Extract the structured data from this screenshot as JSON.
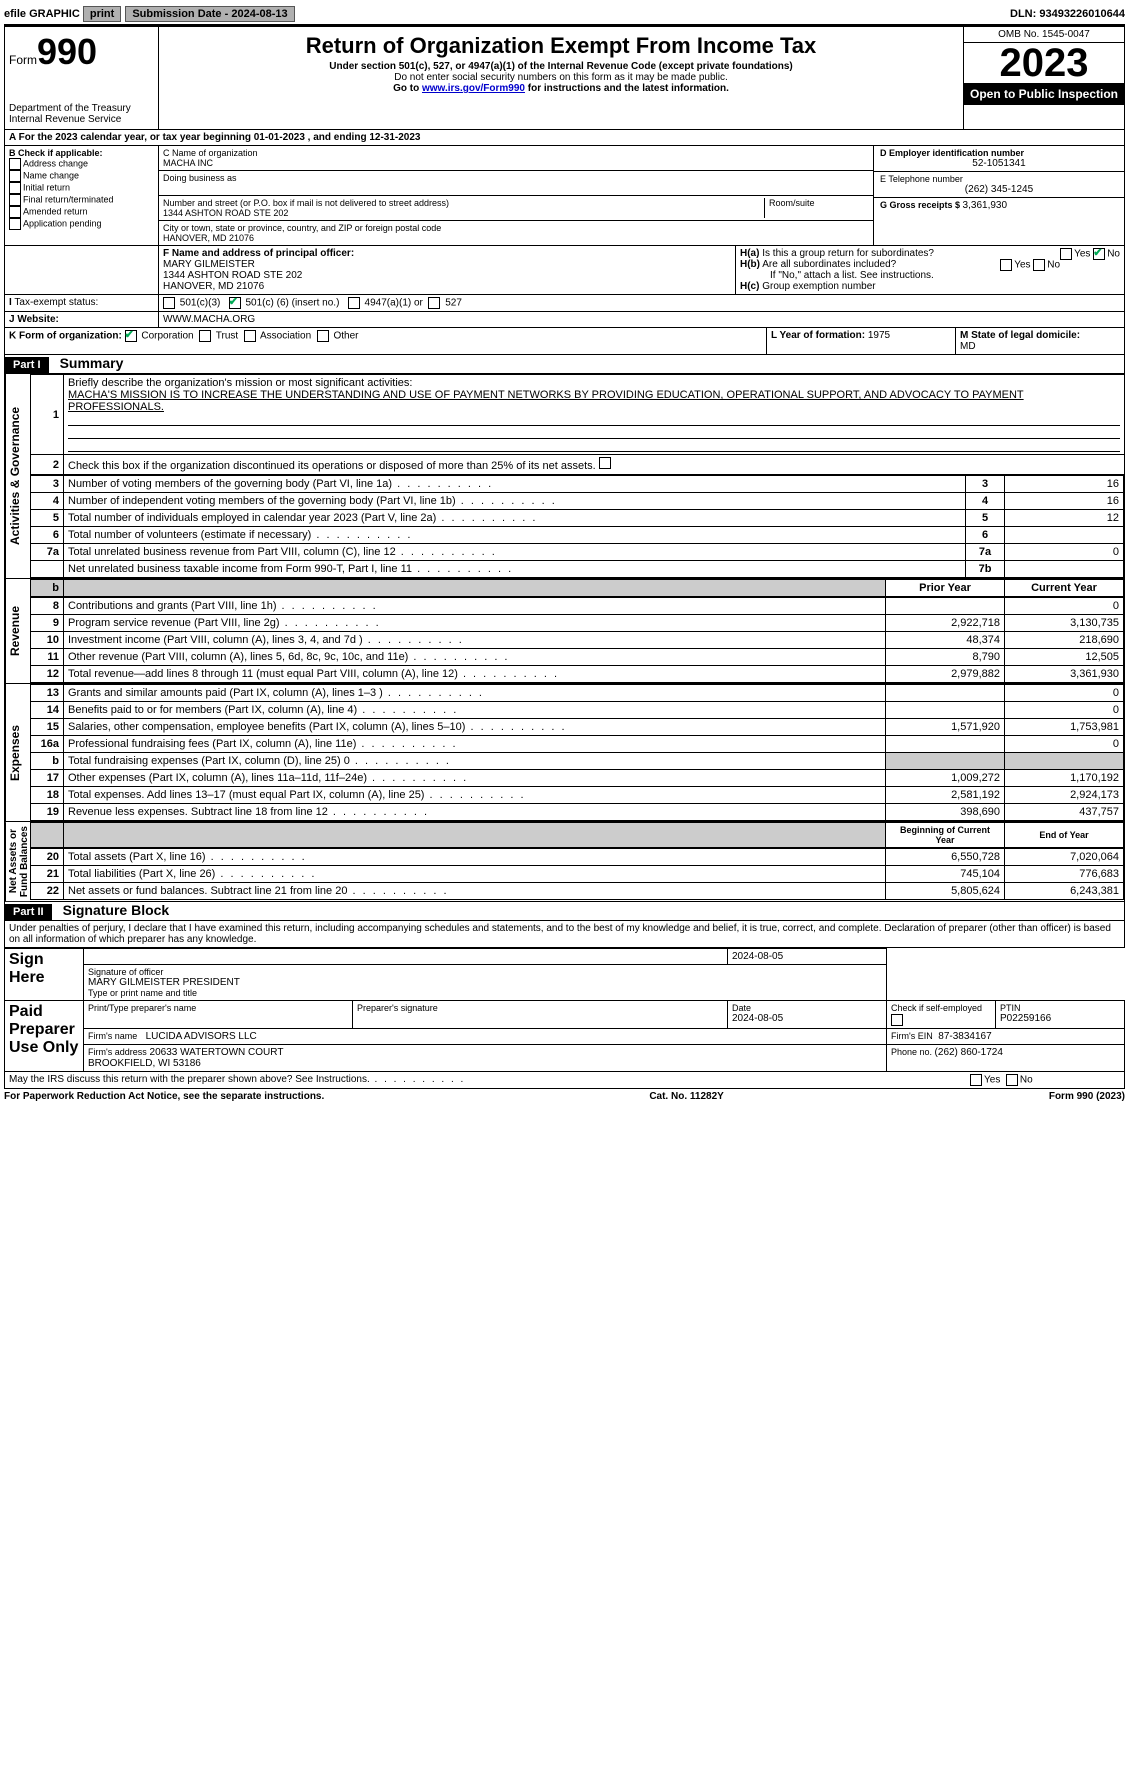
{
  "topbar": {
    "efile": "efile GRAPHIC",
    "print": "print",
    "submission_label": "Submission Date - ",
    "submission_date": "2024-08-13",
    "dln_label": "DLN: ",
    "dln": "93493226010644"
  },
  "header": {
    "form_label": "Form",
    "form_no": "990",
    "dept": "Department of the Treasury\nInternal Revenue Service",
    "title": "Return of Organization Exempt From Income Tax",
    "sub1": "Under section 501(c), 527, or 4947(a)(1) of the Internal Revenue Code (except private foundations)",
    "sub2": "Do not enter social security numbers on this form as it may be made public.",
    "sub3_pre": "Go to ",
    "sub3_link": "www.irs.gov/Form990",
    "sub3_post": " for instructions and the latest information.",
    "omb": "OMB No. 1545-0047",
    "year": "2023",
    "open": "Open to Public Inspection"
  },
  "lineA": {
    "text_pre": "For the 2023 calendar year, or tax year beginning ",
    "begin": "01-01-2023",
    "mid": " , and ending ",
    "end": "12-31-2023"
  },
  "boxB": {
    "label": "B Check if applicable:",
    "opts": [
      "Address change",
      "Name change",
      "Initial return",
      "Final return/terminated",
      "Amended return",
      "Application pending"
    ]
  },
  "boxC": {
    "name_label": "C Name of organization",
    "name": "MACHA INC",
    "dba_label": "Doing business as",
    "addr_label": "Number and street (or P.O. box if mail is not delivered to street address)",
    "addr": "1344 ASHTON ROAD STE 202",
    "room_label": "Room/suite",
    "city_label": "City or town, state or province, country, and ZIP or foreign postal code",
    "city": "HANOVER, MD  21076"
  },
  "boxD": {
    "label": "D Employer identification number",
    "value": "52-1051341"
  },
  "boxE": {
    "label": "E Telephone number",
    "value": "(262) 345-1245"
  },
  "boxG": {
    "label": "G Gross receipts $ ",
    "value": "3,361,930"
  },
  "boxF": {
    "label": "F Name and address of principal officer:",
    "name": "MARY GILMEISTER",
    "addr1": "1344 ASHTON ROAD STE 202",
    "addr2": "HANOVER, MD  21076"
  },
  "boxH": {
    "a": "Is this a group return for subordinates?",
    "b": "Are all subordinates included?",
    "b_note": "If \"No,\" attach a list. See instructions.",
    "c": "Group exemption number",
    "yes": "Yes",
    "no": "No",
    "ha_label": "H(a)",
    "hb_label": "H(b)",
    "hc_label": "H(c)"
  },
  "boxI": {
    "label": "Tax-exempt status:",
    "c3": "501(c)(3)",
    "c": "501(c) (",
    "c_num": "6",
    "c_post": ") (insert no.)",
    "a1": "4947(a)(1) or",
    "s527": "527"
  },
  "boxJ": {
    "label": "Website:",
    "value": "WWW.MACHA.ORG"
  },
  "boxK": {
    "label": "K Form of organization:",
    "corp": "Corporation",
    "trust": "Trust",
    "assoc": "Association",
    "other": "Other"
  },
  "boxL": {
    "label": "L Year of formation: ",
    "value": "1975"
  },
  "boxM": {
    "label": "M State of legal domicile:",
    "value": "MD"
  },
  "part1": {
    "header": "Part I",
    "title": "Summary",
    "l1_label": "Briefly describe the organization's mission or most significant activities:",
    "l1_text": "MACHA'S MISSION IS TO INCREASE THE UNDERSTANDING AND USE OF PAYMENT NETWORKS BY PROVIDING EDUCATION, OPERATIONAL SUPPORT, AND ADVOCACY TO PAYMENT PROFESSIONALS.",
    "l2": "Check this box      if the organization discontinued its operations or disposed of more than 25% of its net assets.",
    "vlabels": {
      "ag": "Activities & Governance",
      "rev": "Revenue",
      "exp": "Expenses",
      "na": "Net Assets or\nFund Balances"
    },
    "cols": {
      "py": "Prior Year",
      "cy": "Current Year",
      "bcy": "Beginning of Current Year",
      "eoy": "End of Year"
    },
    "rows_ag": [
      {
        "n": "3",
        "t": "Number of voting members of the governing body (Part VI, line 1a)",
        "box": "3",
        "v": "16"
      },
      {
        "n": "4",
        "t": "Number of independent voting members of the governing body (Part VI, line 1b)",
        "box": "4",
        "v": "16"
      },
      {
        "n": "5",
        "t": "Total number of individuals employed in calendar year 2023 (Part V, line 2a)",
        "box": "5",
        "v": "12"
      },
      {
        "n": "6",
        "t": "Total number of volunteers (estimate if necessary)",
        "box": "6",
        "v": ""
      },
      {
        "n": "7a",
        "t": "Total unrelated business revenue from Part VIII, column (C), line 12",
        "box": "7a",
        "v": "0"
      },
      {
        "n": "",
        "t": "Net unrelated business taxable income from Form 990-T, Part I, line 11",
        "box": "7b",
        "v": ""
      }
    ],
    "rows_rev": [
      {
        "n": "8",
        "t": "Contributions and grants (Part VIII, line 1h)",
        "py": "",
        "cy": "0"
      },
      {
        "n": "9",
        "t": "Program service revenue (Part VIII, line 2g)",
        "py": "2,922,718",
        "cy": "3,130,735"
      },
      {
        "n": "10",
        "t": "Investment income (Part VIII, column (A), lines 3, 4, and 7d )",
        "py": "48,374",
        "cy": "218,690"
      },
      {
        "n": "11",
        "t": "Other revenue (Part VIII, column (A), lines 5, 6d, 8c, 9c, 10c, and 11e)",
        "py": "8,790",
        "cy": "12,505"
      },
      {
        "n": "12",
        "t": "Total revenue—add lines 8 through 11 (must equal Part VIII, column (A), line 12)",
        "py": "2,979,882",
        "cy": "3,361,930"
      }
    ],
    "rows_exp": [
      {
        "n": "13",
        "t": "Grants and similar amounts paid (Part IX, column (A), lines 1–3 )",
        "py": "",
        "cy": "0"
      },
      {
        "n": "14",
        "t": "Benefits paid to or for members (Part IX, column (A), line 4)",
        "py": "",
        "cy": "0"
      },
      {
        "n": "15",
        "t": "Salaries, other compensation, employee benefits (Part IX, column (A), lines 5–10)",
        "py": "1,571,920",
        "cy": "1,753,981"
      },
      {
        "n": "16a",
        "t": "Professional fundraising fees (Part IX, column (A), line 11e)",
        "py": "",
        "cy": "0"
      },
      {
        "n": "b",
        "t": "Total fundraising expenses (Part IX, column (D), line 25) 0",
        "py": "shade",
        "cy": "shade"
      },
      {
        "n": "17",
        "t": "Other expenses (Part IX, column (A), lines 11a–11d, 11f–24e)",
        "py": "1,009,272",
        "cy": "1,170,192"
      },
      {
        "n": "18",
        "t": "Total expenses. Add lines 13–17 (must equal Part IX, column (A), line 25)",
        "py": "2,581,192",
        "cy": "2,924,173"
      },
      {
        "n": "19",
        "t": "Revenue less expenses. Subtract line 18 from line 12",
        "py": "398,690",
        "cy": "437,757"
      }
    ],
    "rows_na": [
      {
        "n": "20",
        "t": "Total assets (Part X, line 16)",
        "py": "6,550,728",
        "cy": "7,020,064"
      },
      {
        "n": "21",
        "t": "Total liabilities (Part X, line 26)",
        "py": "745,104",
        "cy": "776,683"
      },
      {
        "n": "22",
        "t": "Net assets or fund balances. Subtract line 21 from line 20",
        "py": "5,805,624",
        "cy": "6,243,381"
      }
    ]
  },
  "part2": {
    "header": "Part II",
    "title": "Signature Block",
    "perjury": "Under penalties of perjury, I declare that I have examined this return, including accompanying schedules and statements, and to the best of my knowledge and belief, it is true, correct, and complete. Declaration of preparer (other than officer) is based on all information of which preparer has any knowledge.",
    "sign_here": "Sign Here",
    "sig_officer_label": "Signature of officer",
    "sig_officer": "MARY GILMEISTER  PRESIDENT",
    "sig_title_label": "Type or print name and title",
    "date_label": "Date",
    "date": "2024-08-05",
    "paid": "Paid Preparer Use Only",
    "prep_name_label": "Print/Type preparer's name",
    "prep_sig_label": "Preparer's signature",
    "prep_date": "2024-08-05",
    "check_se": "Check        if self-employed",
    "ptin_label": "PTIN",
    "ptin": "P02259166",
    "firm_name_label": "Firm's name",
    "firm_name": "LUCIDA ADVISORS LLC",
    "firm_ein_label": "Firm's EIN",
    "firm_ein": "87-3834167",
    "firm_addr_label": "Firm's address",
    "firm_addr": "20633 WATERTOWN COURT\nBROOKFIELD, WI  53186",
    "phone_label": "Phone no. ",
    "phone": "(262) 860-1724",
    "discuss": "May the IRS discuss this return with the preparer shown above? See Instructions.",
    "yes": "Yes",
    "no": "No"
  },
  "footer": {
    "left": "For Paperwork Reduction Act Notice, see the separate instructions.",
    "mid": "Cat. No. 11282Y",
    "right": "Form 990 (2023)"
  }
}
